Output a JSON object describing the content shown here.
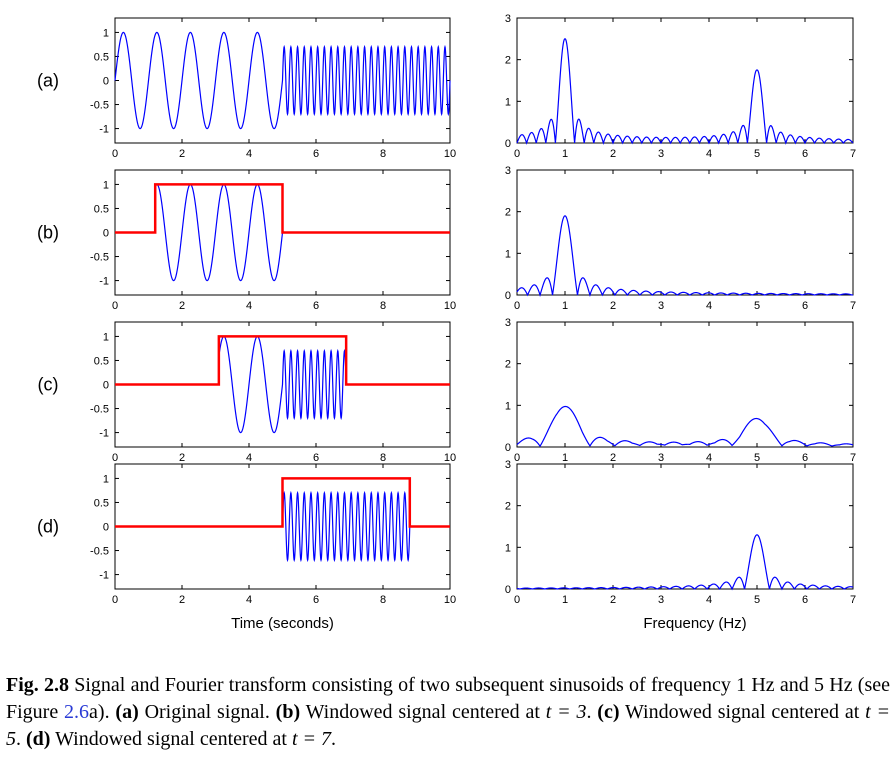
{
  "figure": {
    "row_labels": [
      "(a)",
      "(b)",
      "(c)",
      "(d)"
    ],
    "time_xlabel": "Time (seconds)",
    "freq_xlabel": "Frequency (Hz)"
  },
  "colors": {
    "signal": "#0000ff",
    "window": "#ff0000",
    "axes": "#000000"
  },
  "chart_data": [
    {
      "type": "line",
      "panel": "a-time",
      "xlim": [
        0,
        10
      ],
      "ylim": [
        -1.3,
        1.3
      ],
      "xticks": [
        0,
        2,
        4,
        6,
        8,
        10
      ],
      "yticks": [
        1,
        0.5,
        0,
        -0.5,
        -1
      ],
      "series": [
        {
          "kind": "signal",
          "segments": [
            {
              "t0": 0,
              "t1": 5,
              "freq": 1,
              "amp": 1
            },
            {
              "t0": 5,
              "t1": 10,
              "freq": 5,
              "amp": 0.7
            }
          ]
        }
      ]
    },
    {
      "type": "line",
      "panel": "a-freq",
      "xlim": [
        0,
        7
      ],
      "ylim": [
        0,
        3
      ],
      "xticks": [
        0,
        1,
        2,
        3,
        4,
        5,
        6,
        7
      ],
      "yticks": [
        3,
        2,
        1,
        0
      ],
      "peaks": [
        {
          "f": 1,
          "height": 2.5,
          "width": 0.2
        },
        {
          "f": 5,
          "height": 1.75,
          "width": 0.2
        }
      ]
    },
    {
      "type": "line",
      "panel": "b-time",
      "xlim": [
        0,
        10
      ],
      "ylim": [
        -1.3,
        1.3
      ],
      "xticks": [
        0,
        2,
        4,
        6,
        8,
        10
      ],
      "yticks": [
        1,
        0.5,
        0,
        -0.5,
        -1
      ],
      "window": {
        "start": 1.2,
        "end": 5.0,
        "height": 1
      },
      "series": [
        {
          "kind": "signal",
          "segments": [
            {
              "t0": 1.2,
              "t1": 5.0,
              "freq": 1,
              "amp": 1
            }
          ]
        }
      ]
    },
    {
      "type": "line",
      "panel": "b-freq",
      "xlim": [
        0,
        7
      ],
      "ylim": [
        0,
        3
      ],
      "xticks": [
        0,
        1,
        2,
        3,
        4,
        5,
        6,
        7
      ],
      "yticks": [
        3,
        2,
        1,
        0
      ],
      "peaks": [
        {
          "f": 1,
          "height": 1.9,
          "width": 0.26
        }
      ]
    },
    {
      "type": "line",
      "panel": "c-time",
      "xlim": [
        0,
        10
      ],
      "ylim": [
        -1.3,
        1.3
      ],
      "xticks": [
        0,
        2,
        4,
        6,
        8,
        10
      ],
      "yticks": [
        1,
        0.5,
        0,
        -0.5,
        -1
      ],
      "window": {
        "start": 3.1,
        "end": 6.9,
        "height": 1
      },
      "series": [
        {
          "kind": "signal",
          "segments": [
            {
              "t0": 3.1,
              "t1": 5.0,
              "freq": 1,
              "amp": 1
            },
            {
              "t0": 5.0,
              "t1": 6.9,
              "freq": 5,
              "amp": 0.7
            }
          ]
        }
      ]
    },
    {
      "type": "line",
      "panel": "c-freq",
      "xlim": [
        0,
        7
      ],
      "ylim": [
        0,
        3
      ],
      "xticks": [
        0,
        1,
        2,
        3,
        4,
        5,
        6,
        7
      ],
      "yticks": [
        3,
        2,
        1,
        0
      ],
      "peaks": [
        {
          "f": 1,
          "height": 0.95,
          "width": 0.52
        },
        {
          "f": 5,
          "height": 0.65,
          "width": 0.52
        }
      ]
    },
    {
      "type": "line",
      "panel": "d-time",
      "xlim": [
        0,
        10
      ],
      "ylim": [
        -1.3,
        1.3
      ],
      "xticks": [
        0,
        2,
        4,
        6,
        8,
        10
      ],
      "yticks": [
        1,
        0.5,
        0,
        -0.5,
        -1
      ],
      "window": {
        "start": 5.0,
        "end": 8.8,
        "height": 1
      },
      "series": [
        {
          "kind": "signal",
          "segments": [
            {
              "t0": 5.0,
              "t1": 8.8,
              "freq": 5,
              "amp": 0.7
            }
          ]
        }
      ]
    },
    {
      "type": "line",
      "panel": "d-freq",
      "xlim": [
        0,
        7
      ],
      "ylim": [
        0,
        3
      ],
      "xticks": [
        0,
        1,
        2,
        3,
        4,
        5,
        6,
        7
      ],
      "yticks": [
        3,
        2,
        1,
        0
      ],
      "peaks": [
        {
          "f": 5,
          "height": 1.3,
          "width": 0.26
        }
      ]
    }
  ],
  "caption": {
    "fig_label": "Fig. 2.8",
    "text_1": " Signal and Fourier transform consisting of two subsequent sinusoids of frequency 1 Hz and 5 Hz (see Figure ",
    "ref": "2.6",
    "text_2": "a). ",
    "a_label": "(a)",
    "a_text": " Original signal. ",
    "b_label": "(b)",
    "b_text": " Windowed signal centered at ",
    "b_eq": "t = 3",
    "c_label": "(c)",
    "c_text": " Windowed signal centered at ",
    "c_eq": "t = 5",
    "d_label": "(d)",
    "d_text": " Windowed signal centered at ",
    "d_eq": "t = 7"
  }
}
